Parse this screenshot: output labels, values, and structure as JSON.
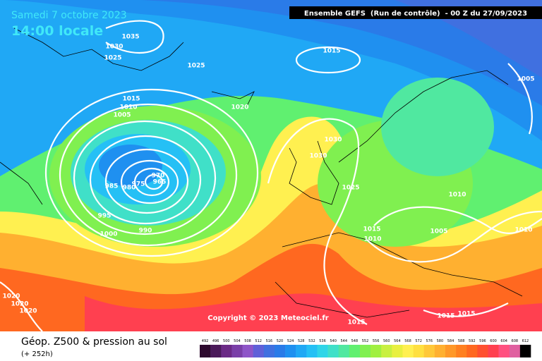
{
  "header": {
    "date": "Samedi 7 octobre 2023",
    "time": "14:00 locale",
    "run": "Ensemble GEFS  (Run de contrôle)  - 00 Z du 27/09/2023"
  },
  "map": {
    "isobar_labels": [
      1035,
      1030,
      1025,
      1025,
      1015,
      1005,
      1015,
      1010,
      1005,
      1020,
      1030,
      1030,
      970,
      965,
      985,
      980,
      975,
      1025,
      1010,
      995,
      990,
      1000,
      1015,
      1005,
      1010,
      1010,
      1020,
      1020,
      1020,
      1015,
      1015,
      1015
    ],
    "copyright": "Copyright © 2023 Meteociel.fr"
  },
  "legend": {
    "title": "Géop. Z500 & pression au sol",
    "lead": "(+ 252h)",
    "values": [
      492,
      496,
      500,
      504,
      508,
      512,
      516,
      520,
      524,
      528,
      532,
      536,
      540,
      544,
      548,
      552,
      556,
      560,
      564,
      568,
      572,
      576,
      580,
      584,
      588,
      592,
      596,
      600,
      604,
      608,
      612
    ],
    "colors": [
      "#2d0a2e",
      "#4b1a5a",
      "#6b2a86",
      "#7a3fa8",
      "#8e55c8",
      "#6060d8",
      "#4070e0",
      "#2a7be8",
      "#1f90f0",
      "#20a8f5",
      "#25c0f5",
      "#30d5e8",
      "#40e0c8",
      "#50e8a0",
      "#60f070",
      "#80f050",
      "#a0f040",
      "#c8f040",
      "#e8f040",
      "#fff050",
      "#ffe040",
      "#ffc838",
      "#ffb030",
      "#ff9828",
      "#ff8020",
      "#ff6820",
      "#ff5030",
      "#ff4050",
      "#ff5080",
      "#e060a0",
      "#000000"
    ]
  }
}
